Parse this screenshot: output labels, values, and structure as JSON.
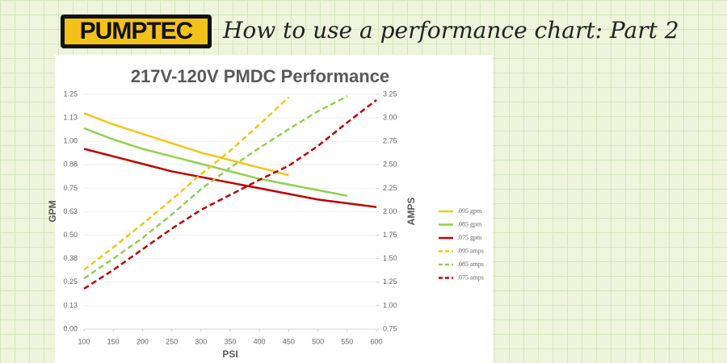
{
  "logo": "PUMPTEC",
  "heading": "How to use a performance chart: Part 2",
  "chart_data": {
    "type": "line",
    "title": "217V-120V PMDC Performance",
    "xlabel": "PSI",
    "ylabel": "GPM",
    "y2label": "AMPS",
    "xlim": [
      100,
      600
    ],
    "xticks": [
      100,
      150,
      200,
      250,
      300,
      350,
      400,
      450,
      500,
      550,
      600
    ],
    "ylim": [
      0,
      1.25
    ],
    "yticks": [
      {
        "value": 0,
        "label": "0.00"
      },
      {
        "value": 0.125,
        "label": "0.13"
      },
      0.25,
      {
        "value": 0.375,
        "label": "0.38"
      },
      {
        "value": 0.5,
        "label": "0.50"
      },
      {
        "value": 0.625,
        "label": "0.63"
      },
      0.75,
      {
        "value": 0.875,
        "label": "0.88"
      },
      {
        "value": 1,
        "label": "1.00"
      },
      {
        "value": 1.125,
        "label": "1.13"
      },
      1.25
    ],
    "y2lim": [
      0.75,
      3.25
    ],
    "y2ticks": [
      0.75,
      {
        "value": 1,
        "label": "1.00"
      },
      1.25,
      {
        "value": 1.5,
        "label": "1.50"
      },
      1.75,
      {
        "value": 2,
        "label": "2.00"
      },
      2.25,
      {
        "value": 2.5,
        "label": "2.50"
      },
      2.75,
      {
        "value": 3,
        "label": "3.00"
      },
      3.25
    ],
    "grid": true,
    "legend": "right",
    "series": [
      {
        "name": ".095 gpm",
        "color": "#f5c518",
        "linestyle": "solid",
        "x": [
          100,
          150,
          200,
          250,
          300,
          350,
          400,
          450
        ],
        "values": [
          1.15,
          1.09,
          1.04,
          0.99,
          0.94,
          0.9,
          0.86,
          0.82
        ]
      },
      {
        "name": ".085 gpm",
        "color": "#92d050",
        "linestyle": "solid",
        "x": [
          100,
          150,
          200,
          250,
          300,
          350,
          400,
          450,
          500,
          550
        ],
        "values": [
          1.07,
          1.01,
          0.96,
          0.92,
          0.88,
          0.84,
          0.8,
          0.77,
          0.74,
          0.71
        ]
      },
      {
        "name": ".075 gpm",
        "color": "#c00000",
        "linestyle": "solid",
        "x": [
          100,
          150,
          200,
          250,
          300,
          350,
          400,
          450,
          500,
          550,
          600
        ],
        "values": [
          0.96,
          0.92,
          0.88,
          0.84,
          0.81,
          0.78,
          0.75,
          0.72,
          0.69,
          0.67,
          0.65
        ]
      },
      {
        "name": ".095 amps",
        "color": "#f5c518",
        "linestyle": "dashed",
        "axis": "y2",
        "x": [
          100,
          150,
          200,
          250,
          300,
          350,
          400,
          450
        ],
        "values": [
          1.38,
          1.62,
          1.87,
          2.13,
          2.4,
          2.65,
          2.93,
          3.22
        ]
      },
      {
        "name": ".085 amps",
        "color": "#92d050",
        "linestyle": "dashed",
        "axis": "y2",
        "x": [
          100,
          150,
          200,
          250,
          300,
          350,
          400,
          450,
          500,
          550
        ],
        "values": [
          1.29,
          1.5,
          1.72,
          1.97,
          2.24,
          2.47,
          2.68,
          2.88,
          3.07,
          3.23
        ]
      },
      {
        "name": ".075 amps",
        "color": "#c00000",
        "linestyle": "dashed",
        "axis": "y2",
        "x": [
          100,
          150,
          200,
          250,
          300,
          350,
          400,
          450,
          500,
          550,
          600
        ],
        "values": [
          1.18,
          1.38,
          1.6,
          1.82,
          2.02,
          2.18,
          2.34,
          2.49,
          2.7,
          2.95,
          3.19
        ]
      }
    ]
  }
}
